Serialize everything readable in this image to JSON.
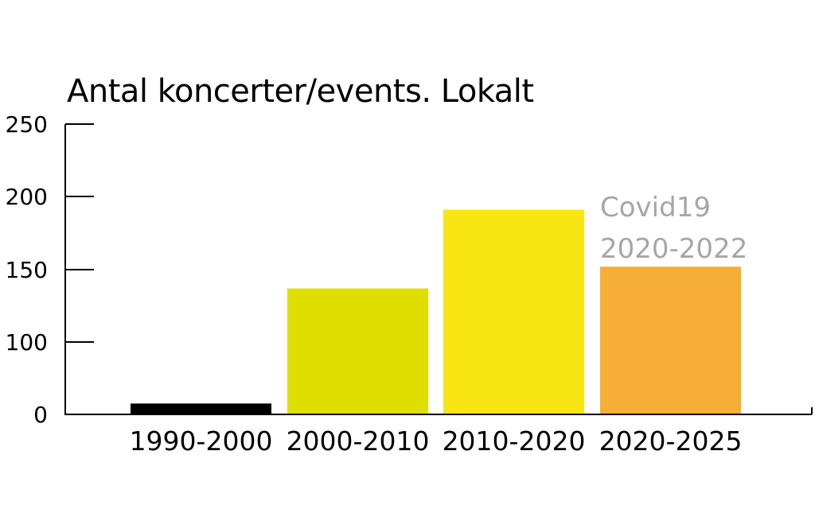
{
  "chart_data": {
    "type": "bar",
    "title": "Antal koncerter/events. Lokalt",
    "categories": [
      "1990-2000",
      "2000-2010",
      "2010-2020",
      "2020-2025"
    ],
    "values": [
      15,
      137,
      191,
      152
    ],
    "bar_colors": [
      "#000000",
      "#dede00",
      "#f9e513",
      "#f7ae36"
    ],
    "y_ticks": [
      250,
      200,
      150,
      100,
      0
    ],
    "annotation": {
      "lines": [
        "Covid19",
        "2020-2022"
      ],
      "category": "2020-2025",
      "color": "#a6a6a6"
    },
    "xlabel": "",
    "ylabel": "",
    "grid": false,
    "legend": "none"
  }
}
